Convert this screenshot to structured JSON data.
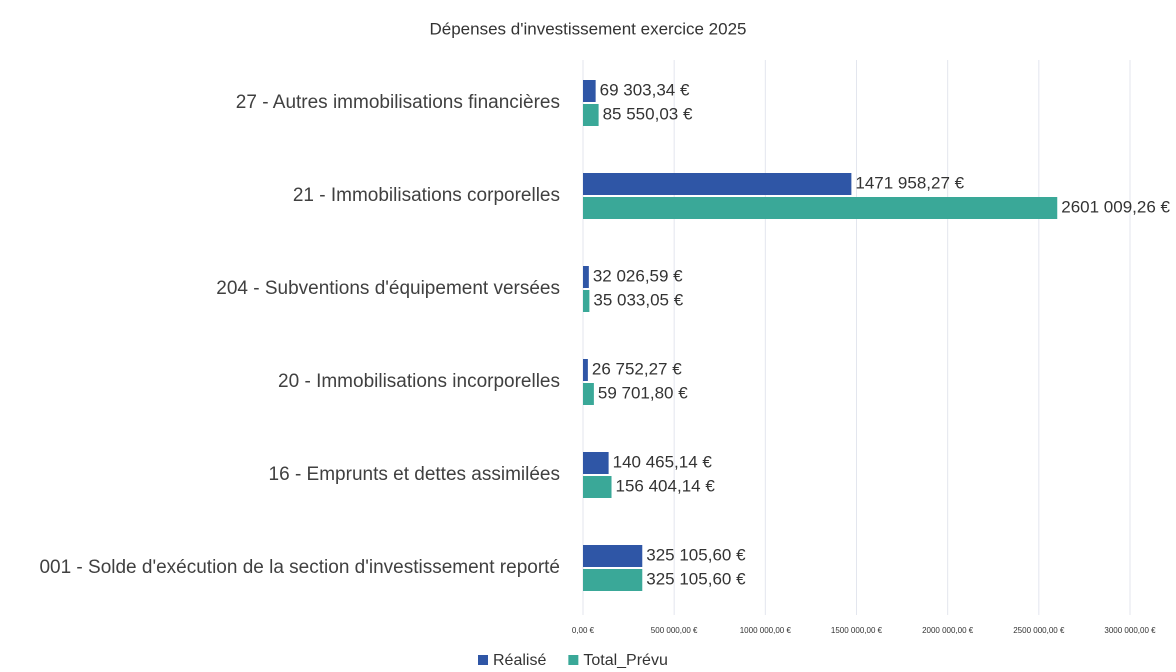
{
  "chart_data": {
    "type": "bar",
    "orientation": "horizontal",
    "title": "Dépenses d'investissement exercice 2025",
    "categories": [
      "27 - Autres immobilisations financières",
      "21 - Immobilisations corporelles",
      "204 - Subventions d'équipement versées",
      "20 - Immobilisations incorporelles",
      "16 - Emprunts et dettes assimilées",
      "001 - Solde d'exécution de la section d'investissement reporté"
    ],
    "series": [
      {
        "name": "Réalisé",
        "color": "#2f56a6",
        "values": [
          69303.34,
          1471958.27,
          32026.59,
          26752.27,
          140465.14,
          325105.6
        ],
        "value_labels": [
          "69 303,34 €",
          "1471 958,27 €",
          "32 026,59 €",
          "26 752,27 €",
          "140 465,14 €",
          "325 105,60 €"
        ]
      },
      {
        "name": "Total_Prévu",
        "color": "#3aa898",
        "values": [
          85550.03,
          2601009.26,
          35033.05,
          59701.8,
          156404.14,
          325105.6
        ],
        "value_labels": [
          "85 550,03 €",
          "2601 009,26 €",
          "35 033,05 €",
          "59 701,80 €",
          "156 404,14 €",
          "325 105,60 €"
        ]
      }
    ],
    "xlim": [
      0,
      3000000
    ],
    "xticks": [
      {
        "value": 0,
        "label": "0,00 €"
      },
      {
        "value": 500000,
        "label": "500 000,00 €"
      },
      {
        "value": 1000000,
        "label": "1000 000,00 €"
      },
      {
        "value": 1500000,
        "label": "1500 000,00 €"
      },
      {
        "value": 2000000,
        "label": "2000 000,00 €"
      },
      {
        "value": 2500000,
        "label": "2500 000,00 €"
      },
      {
        "value": 3000000,
        "label": "3000 000,00 €"
      }
    ],
    "grid": true,
    "legend": "bottom"
  }
}
